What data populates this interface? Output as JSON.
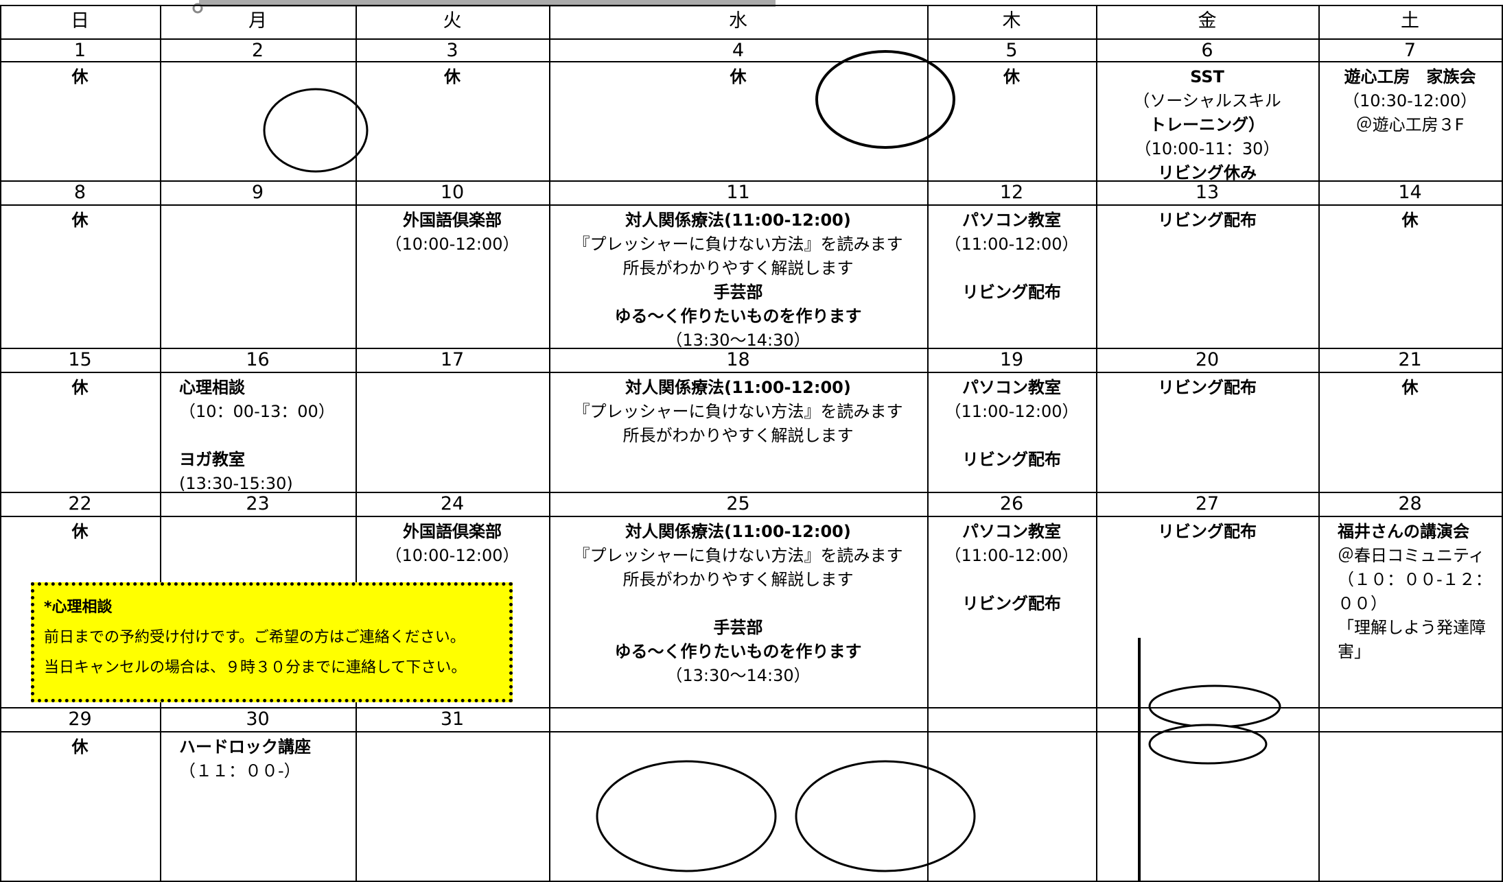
{
  "weekdays": [
    "日",
    "月",
    "火",
    "水",
    "木",
    "金",
    "土"
  ],
  "weeks": [
    {
      "days": [
        {
          "date": "1",
          "groups": [
            [
              "休"
            ]
          ]
        },
        {
          "date": "2"
        },
        {
          "date": "3",
          "groups": [
            [
              "休"
            ]
          ]
        },
        {
          "date": "4",
          "groups": [
            [
              "休"
            ]
          ]
        },
        {
          "date": "5",
          "groups": [
            [
              "休"
            ]
          ]
        },
        {
          "date": "6",
          "groups": [
            [
              "SST",
              "（ソーシャルスキル",
              "トレーニング）",
              "（10:00-11：30）",
              "リビング休み"
            ]
          ]
        },
        {
          "date": "7",
          "groups": [
            [
              "遊心工房　家族会",
              "（10:30-12:00）",
              "＠遊心工房３F"
            ]
          ]
        }
      ]
    },
    {
      "days": [
        {
          "date": "8",
          "groups": [
            [
              "休"
            ]
          ]
        },
        {
          "date": "9"
        },
        {
          "date": "10",
          "groups": [
            [
              "外国語倶楽部",
              "（10:00-12:00）"
            ]
          ]
        },
        {
          "date": "11",
          "groups": [
            [
              "対人関係療法(11:00-12:00)",
              "『プレッシャーに負けない方法』を読みます",
              "所長がわかりやすく解説します",
              "手芸部",
              "ゆる～く作りたいものを作ります",
              "（13:30～14:30）"
            ]
          ]
        },
        {
          "date": "12",
          "groups": [
            [
              "パソコン教室",
              "（11:00-12:00）"
            ],
            [
              "リビング配布"
            ]
          ]
        },
        {
          "date": "13",
          "groups": [
            [
              "リビング配布"
            ]
          ]
        },
        {
          "date": "14",
          "groups": [
            [
              "休"
            ]
          ]
        }
      ]
    },
    {
      "days": [
        {
          "date": "15",
          "groups": [
            [
              "休"
            ]
          ]
        },
        {
          "date": "16",
          "groups": [
            [
              "心理相談",
              "（10：00-13：00）"
            ],
            [
              "ヨガ教室",
              "(13:30-15:30)"
            ]
          ]
        },
        {
          "date": "17"
        },
        {
          "date": "18",
          "groups": [
            [
              "対人関係療法(11:00-12:00)",
              "『プレッシャーに負けない方法』を読みます",
              "所長がわかりやすく解説します"
            ]
          ]
        },
        {
          "date": "19",
          "groups": [
            [
              "パソコン教室",
              "（11:00-12:00）"
            ],
            [
              "リビング配布"
            ]
          ]
        },
        {
          "date": "20",
          "groups": [
            [
              "リビング配布"
            ]
          ]
        },
        {
          "date": "21",
          "groups": [
            [
              "休"
            ]
          ]
        }
      ]
    },
    {
      "days": [
        {
          "date": "22",
          "groups": [
            [
              "休"
            ]
          ]
        },
        {
          "date": "23"
        },
        {
          "date": "24",
          "groups": [
            [
              "外国語倶楽部",
              "（10:00-12:00）"
            ]
          ]
        },
        {
          "date": "25",
          "groups": [
            [
              "対人関係療法(11:00-12:00)",
              "『プレッシャーに負けない方法』を読みます",
              "所長がわかりやすく解説します"
            ],
            [
              "手芸部",
              "ゆる～く作りたいものを作ります",
              "（13:30～14:30）"
            ]
          ]
        },
        {
          "date": "26",
          "groups": [
            [
              "パソコン教室",
              "（11:00-12:00）"
            ],
            [
              "リビング配布"
            ]
          ]
        },
        {
          "date": "27",
          "groups": [
            [
              "リビング配布"
            ]
          ]
        },
        {
          "date": "28",
          "groups": [
            [
              "福井さんの講演会",
              "＠春日コミュニティ",
              "（１０：００-１２：００）",
              "「理解しよう発達障害」"
            ]
          ]
        }
      ]
    },
    {
      "days": [
        {
          "date": "29",
          "groups": [
            [
              "休"
            ]
          ]
        },
        {
          "date": "30",
          "groups": [
            [
              "ハードロック講座",
              "（１１：００-）"
            ]
          ]
        },
        {
          "date": "31"
        },
        {},
        {},
        {},
        {}
      ]
    }
  ],
  "note": {
    "title": "*心理相談",
    "lines": [
      "前日までの予約受け付けです。ご希望の方はご連絡ください。",
      "当日キャンセルの場合は、９時３０分までに連絡して下さい。"
    ]
  }
}
